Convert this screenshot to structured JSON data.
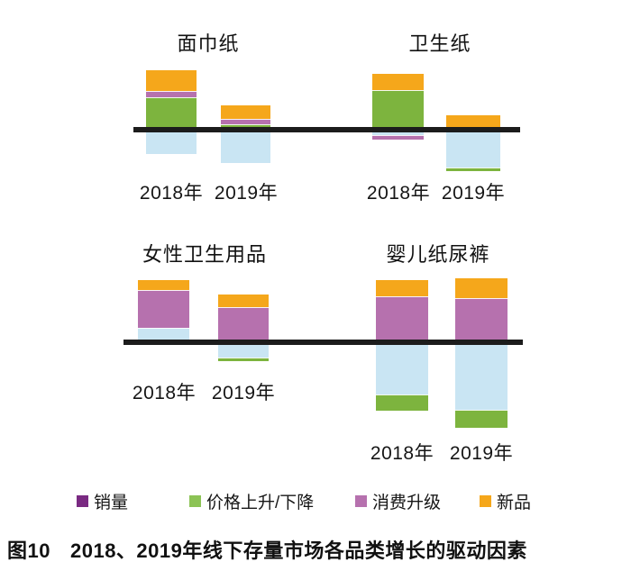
{
  "figure": {
    "caption_prefix": "图10",
    "caption_text": "2018、2019年线下存量市场各品类增长的驱动因素"
  },
  "chart_data": {
    "type": "bar",
    "stacked": true,
    "orientation": "vertical",
    "grid": false,
    "legend_position": "bottom",
    "value_unit": "relative contribution (no numeric axis shown; values estimated from bar pixel heights, baseline = 0)",
    "legend": [
      {
        "label": "销量",
        "color": "#7a2a82"
      },
      {
        "label": "价格上升/下降",
        "color": "#8cc355"
      },
      {
        "label": "消费升级",
        "color": "#b671ae"
      },
      {
        "label": "新品",
        "color": "#f5a71b"
      }
    ],
    "bar_colors": {
      "销量": "#c9e5f3",
      "价格上升/下降": "#7db43e",
      "消费升级": "#b671ae",
      "新品": "#f5a71b"
    },
    "note": "销量 segments appear light blue in the bars although the legend swatch is dark purple",
    "charts": [
      {
        "title": "面巾纸",
        "categories": [
          "2018年",
          "2019年"
        ],
        "bars": [
          {
            "category": "2018年",
            "above": [
              {
                "series": "新品",
                "value": 23
              },
              {
                "series": "消费升级",
                "value": 7
              },
              {
                "series": "价格上升/下降",
                "value": 33
              }
            ],
            "below": [
              {
                "series": "销量",
                "value": 24
              }
            ]
          },
          {
            "category": "2019年",
            "above": [
              {
                "series": "新品",
                "value": 15
              },
              {
                "series": "消费升级",
                "value": 6
              },
              {
                "series": "价格上升/下降",
                "value": 3
              }
            ],
            "below": [
              {
                "series": "销量",
                "value": 34
              }
            ]
          }
        ]
      },
      {
        "title": "卫生纸",
        "categories": [
          "2018年",
          "2019年"
        ],
        "bars": [
          {
            "category": "2018年",
            "above": [
              {
                "series": "新品",
                "value": 18
              },
              {
                "series": "价格上升/下降",
                "value": 41
              }
            ],
            "below": [
              {
                "series": "销量",
                "value": 3
              },
              {
                "series": "消费升级",
                "value": 5
              }
            ]
          },
          {
            "category": "2019年",
            "above": [
              {
                "series": "新品",
                "value": 13
              }
            ],
            "below": [
              {
                "series": "销量",
                "value": 39
              },
              {
                "series": "价格上升/下降",
                "value": 4
              }
            ]
          }
        ]
      },
      {
        "title": "女性卫生用品",
        "categories": [
          "2018年",
          "2019年"
        ],
        "bars": [
          {
            "category": "2018年",
            "above": [
              {
                "series": "新品",
                "value": 11
              },
              {
                "series": "消费升级",
                "value": 42
              },
              {
                "series": "销量",
                "value": 13
              }
            ],
            "below": []
          },
          {
            "category": "2019年",
            "above": [
              {
                "series": "新品",
                "value": 14
              },
              {
                "series": "消费升级",
                "value": 36
              }
            ],
            "below": [
              {
                "series": "销量",
                "value": 14
              },
              {
                "series": "价格上升/下降",
                "value": 4
              }
            ]
          }
        ]
      },
      {
        "title": "婴儿纸尿裤",
        "categories": [
          "2018年",
          "2019年"
        ],
        "bars": [
          {
            "category": "2018年",
            "above": [
              {
                "series": "新品",
                "value": 18
              },
              {
                "series": "消费升级",
                "value": 48
              }
            ],
            "below": [
              {
                "series": "销量",
                "value": 55
              },
              {
                "series": "价格上升/下降",
                "value": 18
              }
            ]
          },
          {
            "category": "2019年",
            "above": [
              {
                "series": "新品",
                "value": 22
              },
              {
                "series": "消费升级",
                "value": 46
              }
            ],
            "below": [
              {
                "series": "销量",
                "value": 72
              },
              {
                "series": "价格上升/下降",
                "value": 20
              }
            ]
          }
        ]
      }
    ]
  }
}
